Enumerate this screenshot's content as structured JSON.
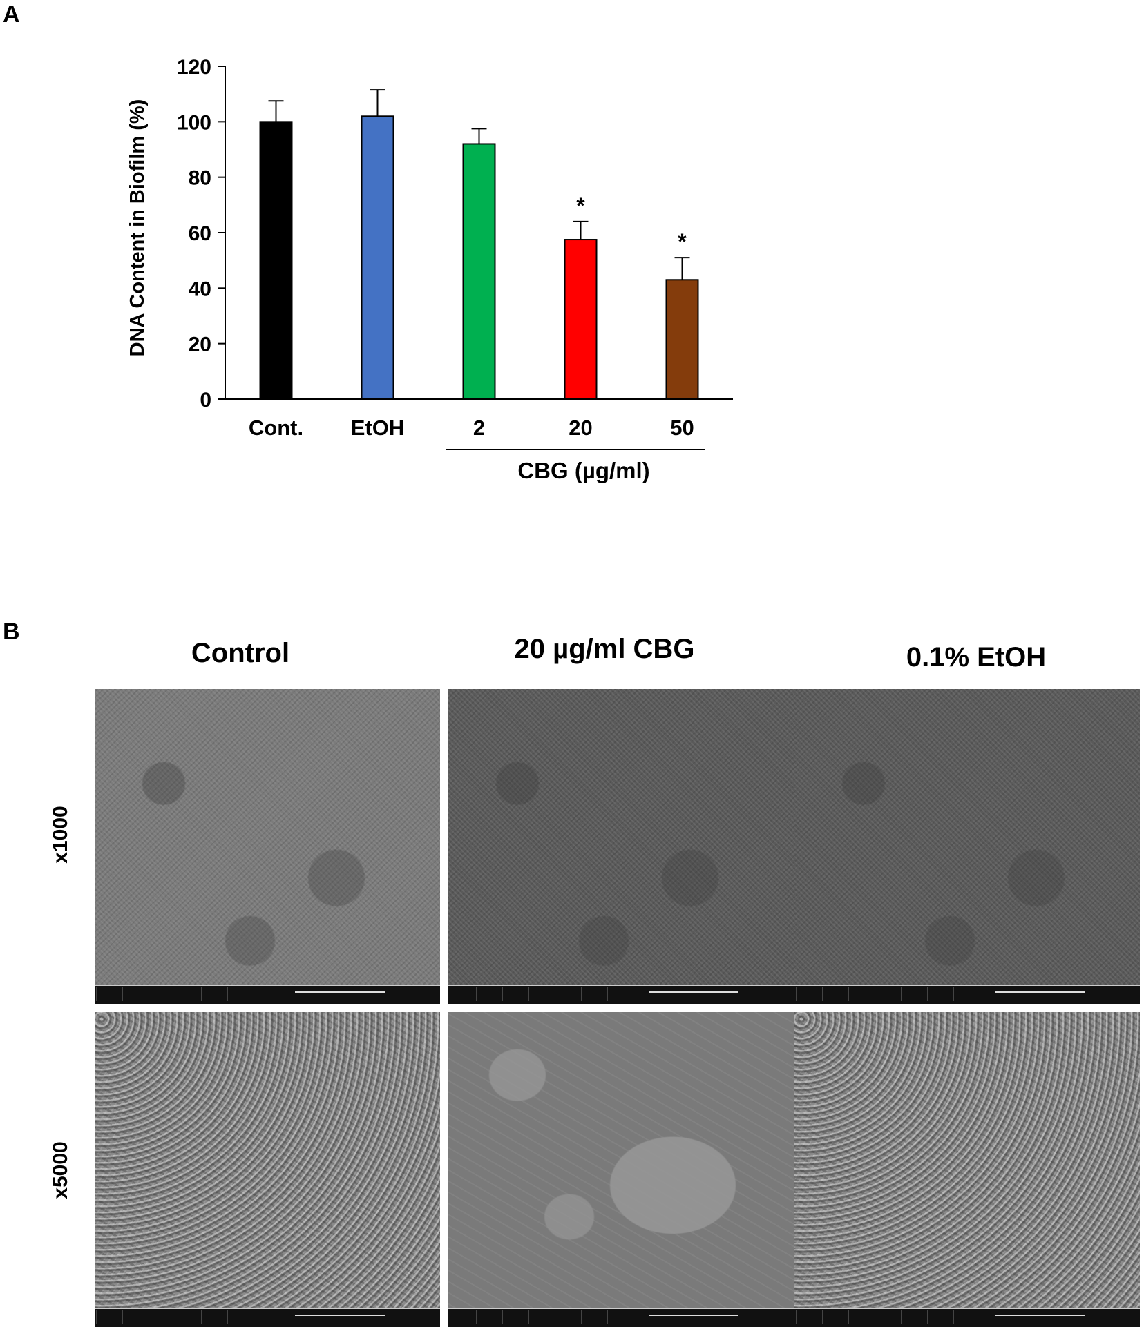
{
  "panel_a": {
    "letter": "A"
  },
  "panel_b": {
    "letter": "B",
    "columns": [
      "Control",
      "20 µg/ml CBG",
      "0.1% EtOH"
    ],
    "rows": [
      "x1000",
      "x5000"
    ]
  },
  "colors": {
    "Cont.": "#000000",
    "EtOH": "#4472c4",
    "2": "#00b050",
    "20": "#ff0000",
    "50": "#843c0c"
  },
  "chart_data": {
    "type": "bar",
    "categories": [
      "Cont.",
      "EtOH",
      "2",
      "20",
      "50"
    ],
    "values": [
      100,
      102,
      92,
      57.5,
      43
    ],
    "errors": [
      7.5,
      9.5,
      5.5,
      6.5,
      8
    ],
    "significance": [
      "",
      "",
      "",
      "*",
      "*"
    ],
    "ylabel": "DNA Content in Biofilm (%)",
    "xlabel": "",
    "group_label": "CBG (µg/ml)",
    "group_categories": [
      "2",
      "20",
      "50"
    ],
    "ylim": [
      0,
      120
    ],
    "yticks": [
      0,
      20,
      40,
      60,
      80,
      100,
      120
    ],
    "grid": false
  }
}
